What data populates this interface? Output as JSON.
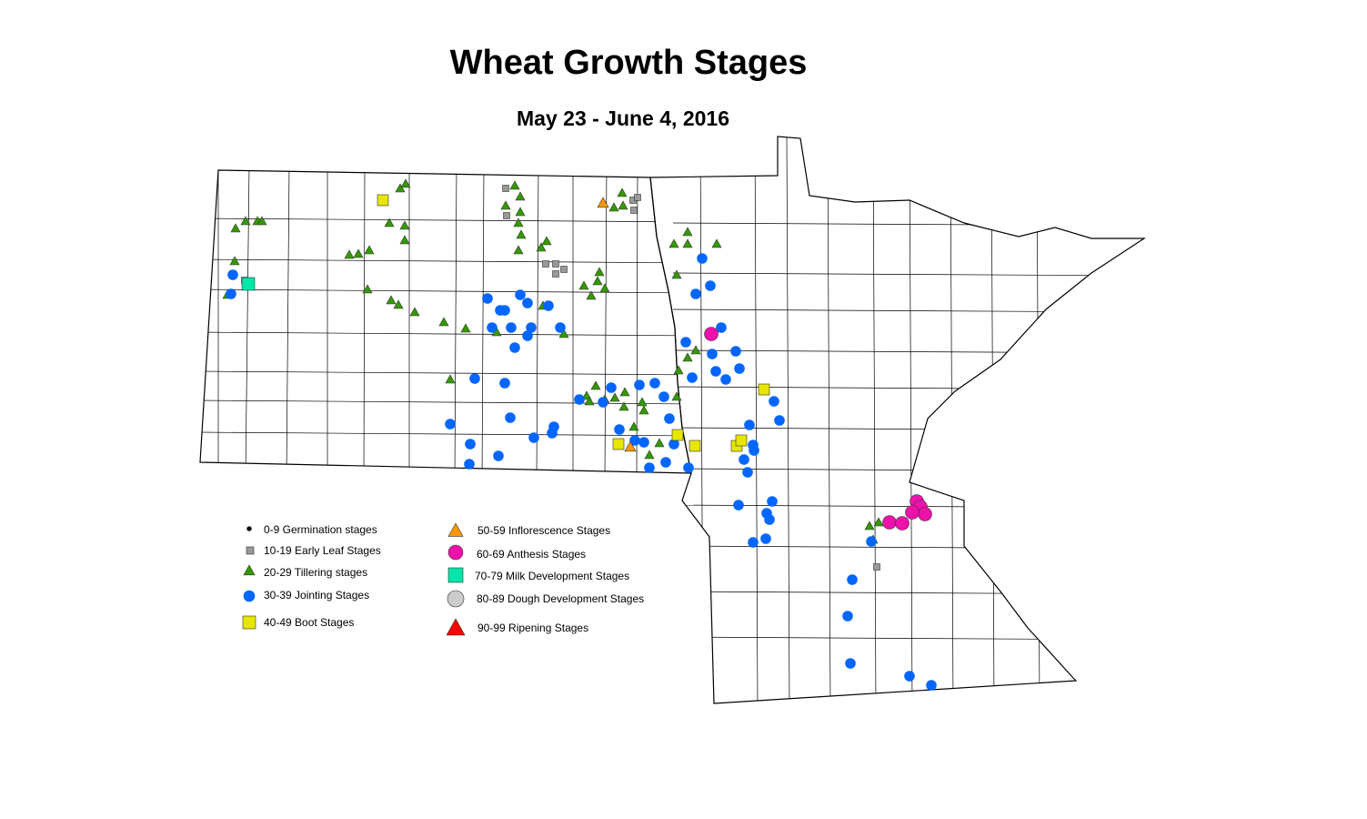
{
  "title": "Wheat Growth Stages",
  "subtitle": "May 23 - June 4, 2016",
  "legend": [
    {
      "key": "G",
      "label": "0-9 Germination stages",
      "shape": "dot",
      "color": "#000000"
    },
    {
      "key": "S",
      "label": "10-19 Early Leaf Stages",
      "shape": "square",
      "color": "#999999"
    },
    {
      "key": "T",
      "label": "20-29 Tillering stages",
      "shape": "triangle",
      "color": "#339900"
    },
    {
      "key": "C",
      "label": "30-39 Jointing Stages",
      "shape": "circle",
      "color": "#0066ff"
    },
    {
      "key": "Y",
      "label": "40-49 Boot Stages",
      "shape": "square",
      "color": "#e6e600"
    },
    {
      "key": "O",
      "label": "50-59 Inflorescence Stages",
      "shape": "triangle",
      "color": "#ff9900"
    },
    {
      "key": "P",
      "label": "60-69 Anthesis Stages",
      "shape": "circle",
      "color": "#ee11aa"
    },
    {
      "key": "M",
      "label": "70-79 Milk Development Stages",
      "shape": "square",
      "color": "#00e6a8"
    },
    {
      "key": "D",
      "label": "80-89 Dough Development Stages",
      "shape": "circle",
      "color": "#cccccc"
    },
    {
      "key": "R",
      "label": "90-99 Ripening Stages",
      "shape": "triangle",
      "color": "#ff0000"
    }
  ]
}
